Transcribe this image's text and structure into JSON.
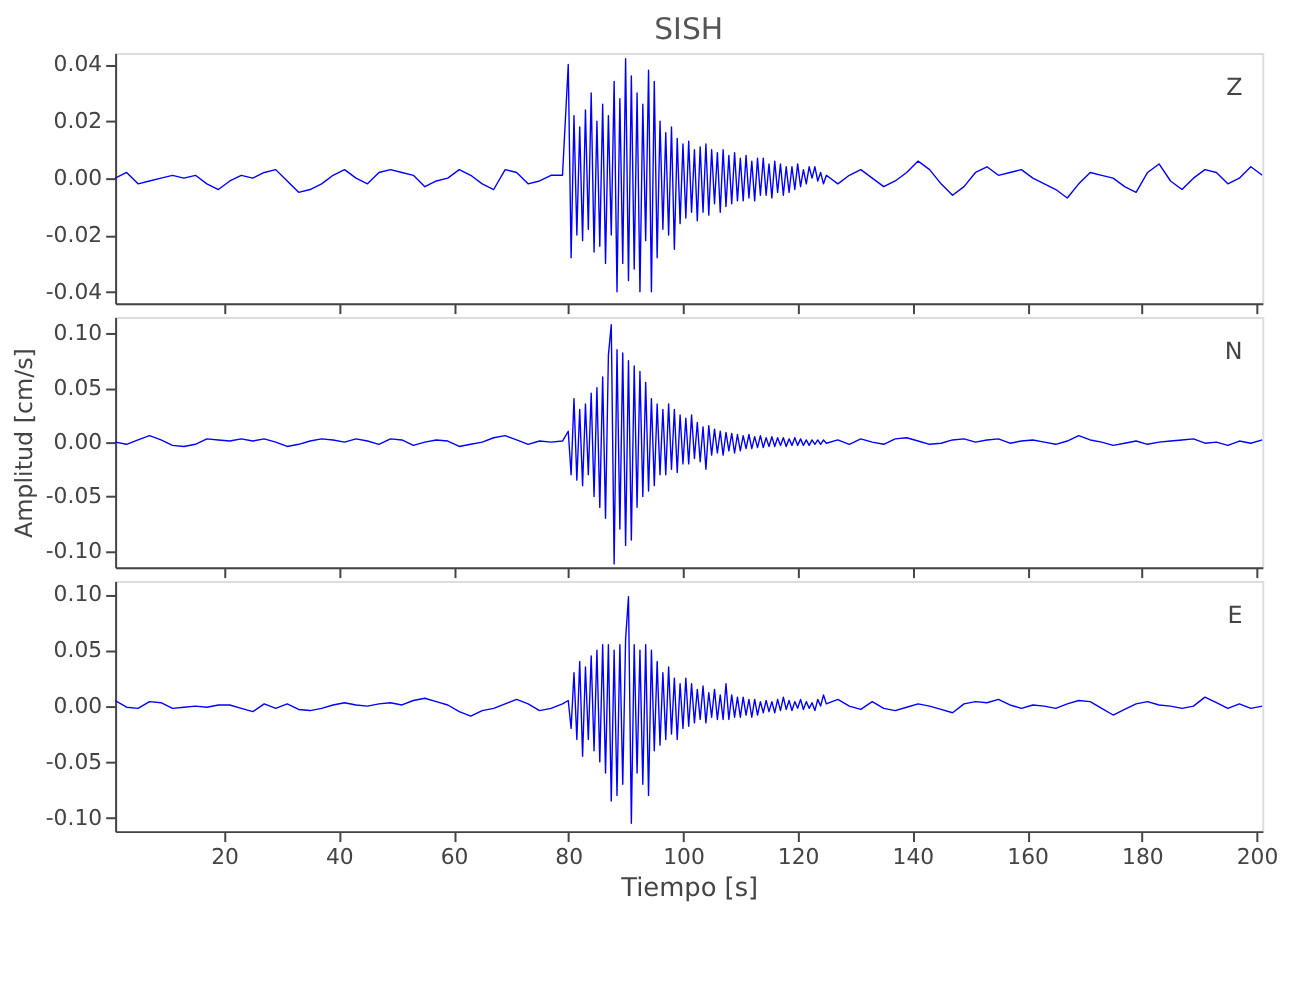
{
  "chart_data": [
    {
      "type": "line",
      "title": "SISH",
      "annotations": [
        "Z"
      ],
      "grid": false,
      "marker": "none",
      "line_style": "solid",
      "tick_labels": "y",
      "xlim": [
        1,
        201
      ],
      "xticks": [
        20,
        40,
        60,
        80,
        100,
        120,
        140,
        160,
        180,
        200
      ],
      "ylim": [
        -0.044,
        0.044
      ],
      "yticks": [
        {
          "value": -0.04,
          "label": "-0.04"
        },
        {
          "value": -0.02,
          "label": "-0.02"
        },
        {
          "value": 0,
          "label": "0.00"
        },
        {
          "value": 0.02,
          "label": "0.02"
        },
        {
          "value": 0.04,
          "label": "0.04"
        }
      ],
      "x": [
        1,
        3,
        5,
        7,
        9,
        11,
        13,
        15,
        17,
        19,
        21,
        23,
        25,
        27,
        29,
        31,
        33,
        35,
        37,
        39,
        41,
        43,
        45,
        47,
        49,
        51,
        53,
        55,
        57,
        59,
        61,
        63,
        65,
        67,
        69,
        71,
        73,
        75,
        77,
        79,
        80,
        80.5,
        81,
        81.5,
        82,
        82.5,
        83,
        83.5,
        84,
        84.5,
        85,
        85.5,
        86,
        86.5,
        87,
        87.5,
        88,
        88.5,
        89,
        89.5,
        90,
        90.5,
        91,
        91.5,
        92,
        92.5,
        93,
        93.5,
        94,
        94.5,
        95,
        95.5,
        96,
        96.5,
        97,
        97.5,
        98,
        98.5,
        99,
        99.5,
        100,
        100.5,
        101,
        101.5,
        102,
        102.5,
        103,
        103.5,
        104,
        104.5,
        105,
        105.5,
        106,
        106.5,
        107,
        107.5,
        108,
        108.5,
        109,
        109.5,
        110,
        110.5,
        111,
        111.5,
        112,
        112.5,
        113,
        113.5,
        114,
        114.5,
        115,
        115.5,
        116,
        116.5,
        117,
        117.5,
        118,
        118.5,
        119,
        119.5,
        120,
        120.5,
        121,
        121.5,
        122,
        122.5,
        123,
        123.5,
        124,
        124.5,
        125,
        127,
        129,
        131,
        133,
        135,
        137,
        139,
        141,
        143,
        145,
        147,
        149,
        151,
        153,
        155,
        157,
        159,
        161,
        163,
        165,
        167,
        169,
        171,
        173,
        175,
        177,
        179,
        181,
        183,
        185,
        187,
        189,
        191,
        193,
        195,
        197,
        199,
        201
      ],
      "series": [
        {
          "color": "#0000ff",
          "values": [
            0.0,
            0.002,
            -0.002,
            -0.001,
            0.0,
            0.001,
            0.0,
            0.001,
            -0.002,
            -0.004,
            -0.001,
            0.001,
            0.0,
            0.002,
            0.003,
            -0.001,
            -0.005,
            -0.004,
            -0.002,
            0.001,
            0.003,
            0.0,
            -0.002,
            0.002,
            0.003,
            0.002,
            0.001,
            -0.003,
            -0.001,
            0.0,
            0.003,
            0.001,
            -0.002,
            -0.004,
            0.003,
            0.002,
            -0.002,
            -0.001,
            0.001,
            0.001,
            0.04,
            -0.028,
            0.022,
            -0.02,
            0.018,
            -0.022,
            0.024,
            -0.018,
            0.03,
            -0.026,
            0.02,
            -0.024,
            0.026,
            -0.03,
            0.022,
            -0.02,
            0.034,
            -0.04,
            0.028,
            -0.03,
            0.042,
            -0.036,
            0.036,
            -0.032,
            0.03,
            -0.04,
            0.026,
            -0.022,
            0.038,
            -0.04,
            0.034,
            -0.028,
            0.02,
            -0.018,
            0.016,
            -0.02,
            0.018,
            -0.025,
            0.014,
            -0.016,
            0.012,
            -0.014,
            0.013,
            -0.012,
            0.01,
            -0.015,
            0.011,
            -0.012,
            0.012,
            -0.013,
            0.01,
            -0.009,
            0.009,
            -0.012,
            0.01,
            -0.01,
            0.008,
            -0.009,
            0.009,
            -0.008,
            0.007,
            -0.008,
            0.008,
            -0.007,
            0.006,
            -0.008,
            0.007,
            -0.006,
            0.007,
            -0.006,
            0.005,
            -0.007,
            0.006,
            -0.005,
            0.005,
            -0.006,
            0.004,
            -0.005,
            0.004,
            -0.004,
            0.005,
            -0.003,
            0.003,
            -0.002,
            0.004,
            0.0,
            0.004,
            -0.001,
            0.002,
            -0.002,
            0.001,
            -0.002,
            0.001,
            0.003,
            0.0,
            -0.003,
            -0.001,
            0.002,
            0.006,
            0.003,
            -0.002,
            -0.006,
            -0.003,
            0.002,
            0.004,
            0.001,
            0.002,
            0.003,
            0.0,
            -0.002,
            -0.004,
            -0.007,
            -0.002,
            0.002,
            0.001,
            0.0,
            -0.003,
            -0.005,
            0.002,
            0.005,
            -0.001,
            -0.004,
            0.0,
            0.003,
            0.002,
            -0.002,
            0.0,
            0.004,
            0.001
          ]
        }
      ]
    },
    {
      "type": "line",
      "ylabel": "Amplitud  [cm/s]",
      "annotations": [
        "N"
      ],
      "grid": false,
      "marker": "none",
      "line_style": "solid",
      "tick_labels": "y",
      "xlim": [
        1,
        201
      ],
      "xticks": [
        20,
        40,
        60,
        80,
        100,
        120,
        140,
        160,
        180,
        200
      ],
      "ylim": [
        -0.115,
        0.115
      ],
      "yticks": [
        {
          "value": -0.1,
          "label": "-0.10"
        },
        {
          "value": -0.05,
          "label": "-0.05"
        },
        {
          "value": 0,
          "label": "0.00"
        },
        {
          "value": 0.05,
          "label": "0.05"
        },
        {
          "value": 0.1,
          "label": "0.10"
        }
      ],
      "x": [
        1,
        3,
        5,
        7,
        9,
        11,
        13,
        15,
        17,
        19,
        21,
        23,
        25,
        27,
        29,
        31,
        33,
        35,
        37,
        39,
        41,
        43,
        45,
        47,
        49,
        51,
        53,
        55,
        57,
        59,
        61,
        63,
        65,
        67,
        69,
        71,
        73,
        75,
        77,
        79,
        80,
        80.5,
        81,
        81.5,
        82,
        82.5,
        83,
        83.5,
        84,
        84.5,
        85,
        85.5,
        86,
        86.5,
        87,
        87.5,
        88,
        88.5,
        89,
        89.5,
        90,
        90.5,
        91,
        91.5,
        92,
        92.5,
        93,
        93.5,
        94,
        94.5,
        95,
        95.5,
        96,
        96.5,
        97,
        97.5,
        98,
        98.5,
        99,
        99.5,
        100,
        100.5,
        101,
        101.5,
        102,
        102.5,
        103,
        103.5,
        104,
        104.5,
        105,
        105.5,
        106,
        106.5,
        107,
        107.5,
        108,
        108.5,
        109,
        109.5,
        110,
        110.5,
        111,
        111.5,
        112,
        112.5,
        113,
        113.5,
        114,
        114.5,
        115,
        115.5,
        116,
        116.5,
        117,
        117.5,
        118,
        118.5,
        119,
        119.5,
        120,
        120.5,
        121,
        121.5,
        122,
        122.5,
        123,
        123.5,
        124,
        124.5,
        125,
        127,
        129,
        131,
        133,
        135,
        137,
        139,
        141,
        143,
        145,
        147,
        149,
        151,
        153,
        155,
        157,
        159,
        161,
        163,
        165,
        167,
        169,
        171,
        173,
        175,
        177,
        179,
        181,
        183,
        185,
        187,
        189,
        191,
        193,
        195,
        197,
        199,
        201
      ],
      "series": [
        {
          "color": "#0000ff",
          "values": [
            0.0,
            -0.002,
            0.002,
            0.006,
            0.002,
            -0.003,
            -0.004,
            -0.002,
            0.003,
            0.002,
            0.001,
            0.003,
            0.001,
            0.003,
            0.0,
            -0.004,
            -0.002,
            0.001,
            0.003,
            0.002,
            0.0,
            0.003,
            0.001,
            -0.002,
            0.003,
            0.002,
            -0.003,
            0.0,
            0.002,
            0.001,
            -0.004,
            -0.002,
            0.0,
            0.004,
            0.006,
            0.002,
            -0.002,
            0.001,
            0.0,
            0.001,
            0.01,
            -0.03,
            0.04,
            -0.035,
            0.03,
            -0.04,
            0.035,
            -0.03,
            0.045,
            -0.05,
            0.05,
            -0.06,
            0.06,
            -0.07,
            0.08,
            0.108,
            -0.112,
            0.085,
            -0.08,
            0.082,
            -0.095,
            0.075,
            -0.09,
            0.07,
            -0.06,
            0.065,
            -0.05,
            0.055,
            -0.045,
            0.04,
            -0.04,
            0.035,
            -0.03,
            0.03,
            -0.03,
            0.035,
            -0.025,
            0.03,
            -0.028,
            0.025,
            -0.02,
            0.022,
            -0.02,
            0.025,
            -0.015,
            0.018,
            -0.018,
            0.014,
            -0.025,
            0.015,
            -0.012,
            0.012,
            -0.01,
            0.01,
            -0.012,
            0.009,
            -0.008,
            0.008,
            -0.01,
            0.007,
            -0.008,
            0.006,
            -0.006,
            0.007,
            -0.006,
            0.005,
            -0.005,
            0.006,
            -0.005,
            0.004,
            -0.004,
            0.005,
            -0.004,
            0.004,
            -0.003,
            0.004,
            -0.004,
            0.003,
            -0.003,
            0.004,
            -0.003,
            0.003,
            -0.003,
            0.002,
            -0.003,
            0.002,
            -0.002,
            0.002,
            -0.002,
            0.002,
            -0.001,
            0.002,
            -0.002,
            0.003,
            0.0,
            -0.002,
            0.003,
            0.004,
            0.001,
            -0.002,
            -0.001,
            0.002,
            0.003,
            0.0,
            0.002,
            0.003,
            -0.001,
            0.001,
            0.002,
            0.0,
            -0.002,
            0.001,
            0.006,
            0.002,
            0.0,
            -0.003,
            -0.001,
            0.001,
            -0.002,
            0.0,
            0.001,
            0.002,
            0.003,
            -0.001,
            0.0,
            -0.003,
            0.001,
            -0.001,
            0.002
          ]
        }
      ]
    },
    {
      "type": "line",
      "xlabel": "Tiempo  [s]",
      "annotations": [
        "E"
      ],
      "grid": false,
      "marker": "none",
      "line_style": "solid",
      "xlim": [
        1,
        201
      ],
      "xticks": [
        20,
        40,
        60,
        80,
        100,
        120,
        140,
        160,
        180,
        200
      ],
      "ylim": [
        -0.112,
        0.112
      ],
      "yticks": [
        {
          "value": -0.1,
          "label": "-0.10"
        },
        {
          "value": -0.05,
          "label": "-0.05"
        },
        {
          "value": 0,
          "label": "0.00"
        },
        {
          "value": 0.05,
          "label": "0.05"
        },
        {
          "value": 0.1,
          "label": "0.10"
        }
      ],
      "x": [
        1,
        3,
        5,
        7,
        9,
        11,
        13,
        15,
        17,
        19,
        21,
        23,
        25,
        27,
        29,
        31,
        33,
        35,
        37,
        39,
        41,
        43,
        45,
        47,
        49,
        51,
        53,
        55,
        57,
        59,
        61,
        63,
        65,
        67,
        69,
        71,
        73,
        75,
        77,
        79,
        80,
        80.5,
        81,
        81.5,
        82,
        82.5,
        83,
        83.5,
        84,
        84.5,
        85,
        85.5,
        86,
        86.5,
        87,
        87.5,
        88,
        88.5,
        89,
        89.5,
        90,
        90.5,
        91,
        91.5,
        92,
        92.5,
        93,
        93.5,
        94,
        94.5,
        95,
        95.5,
        96,
        96.5,
        97,
        97.5,
        98,
        98.5,
        99,
        99.5,
        100,
        100.5,
        101,
        101.5,
        102,
        102.5,
        103,
        103.5,
        104,
        104.5,
        105,
        105.5,
        106,
        106.5,
        107,
        107.5,
        108,
        108.5,
        109,
        109.5,
        110,
        110.5,
        111,
        111.5,
        112,
        112.5,
        113,
        113.5,
        114,
        114.5,
        115,
        115.5,
        116,
        116.5,
        117,
        117.5,
        118,
        118.5,
        119,
        119.5,
        120,
        120.5,
        121,
        121.5,
        122,
        122.5,
        123,
        123.5,
        124,
        124.5,
        125,
        127,
        129,
        131,
        133,
        135,
        137,
        139,
        141,
        143,
        145,
        147,
        149,
        151,
        153,
        155,
        157,
        159,
        161,
        163,
        165,
        167,
        169,
        171,
        173,
        175,
        177,
        179,
        181,
        183,
        185,
        187,
        189,
        191,
        193,
        195,
        197,
        199,
        201
      ],
      "series": [
        {
          "color": "#0000ff",
          "values": [
            0.005,
            -0.001,
            -0.002,
            0.004,
            0.003,
            -0.002,
            -0.001,
            0.0,
            -0.001,
            0.001,
            0.001,
            -0.002,
            -0.005,
            0.002,
            -0.002,
            0.002,
            -0.003,
            -0.004,
            -0.002,
            0.001,
            0.003,
            0.001,
            0.0,
            0.002,
            0.003,
            0.001,
            0.005,
            0.007,
            0.004,
            0.001,
            -0.005,
            -0.009,
            -0.004,
            -0.002,
            0.002,
            0.006,
            0.002,
            -0.004,
            -0.002,
            0.002,
            0.005,
            -0.02,
            0.03,
            -0.03,
            0.04,
            -0.045,
            0.035,
            -0.03,
            0.045,
            -0.04,
            0.05,
            -0.05,
            0.055,
            -0.06,
            0.055,
            -0.085,
            0.05,
            -0.08,
            0.055,
            -0.07,
            0.06,
            0.098,
            -0.105,
            0.055,
            -0.06,
            0.05,
            -0.07,
            0.055,
            -0.08,
            0.05,
            -0.04,
            0.04,
            -0.035,
            0.03,
            -0.03,
            0.035,
            -0.025,
            0.025,
            -0.03,
            0.02,
            -0.02,
            0.025,
            -0.018,
            0.02,
            -0.015,
            0.015,
            -0.012,
            0.018,
            -0.015,
            0.012,
            -0.01,
            0.015,
            -0.012,
            0.01,
            -0.012,
            0.02,
            -0.012,
            0.01,
            -0.01,
            0.008,
            -0.01,
            0.008,
            -0.008,
            0.006,
            -0.01,
            0.006,
            -0.008,
            0.004,
            -0.006,
            0.005,
            -0.005,
            0.004,
            -0.006,
            0.006,
            -0.004,
            0.008,
            -0.003,
            0.005,
            -0.004,
            0.004,
            -0.002,
            0.006,
            -0.003,
            0.004,
            -0.002,
            0.003,
            -0.004,
            0.006,
            0.0,
            0.01,
            0.002,
            0.006,
            0.0,
            -0.003,
            0.004,
            -0.002,
            -0.004,
            -0.001,
            0.002,
            0.0,
            -0.003,
            -0.006,
            0.002,
            0.004,
            0.003,
            0.006,
            0.001,
            -0.002,
            0.001,
            0.0,
            -0.002,
            0.002,
            0.005,
            0.004,
            -0.002,
            -0.008,
            -0.003,
            0.002,
            0.004,
            0.001,
            0.0,
            -0.002,
            0.0,
            0.008,
            0.003,
            -0.002,
            0.002,
            -0.002,
            0.0
          ]
        }
      ]
    }
  ]
}
